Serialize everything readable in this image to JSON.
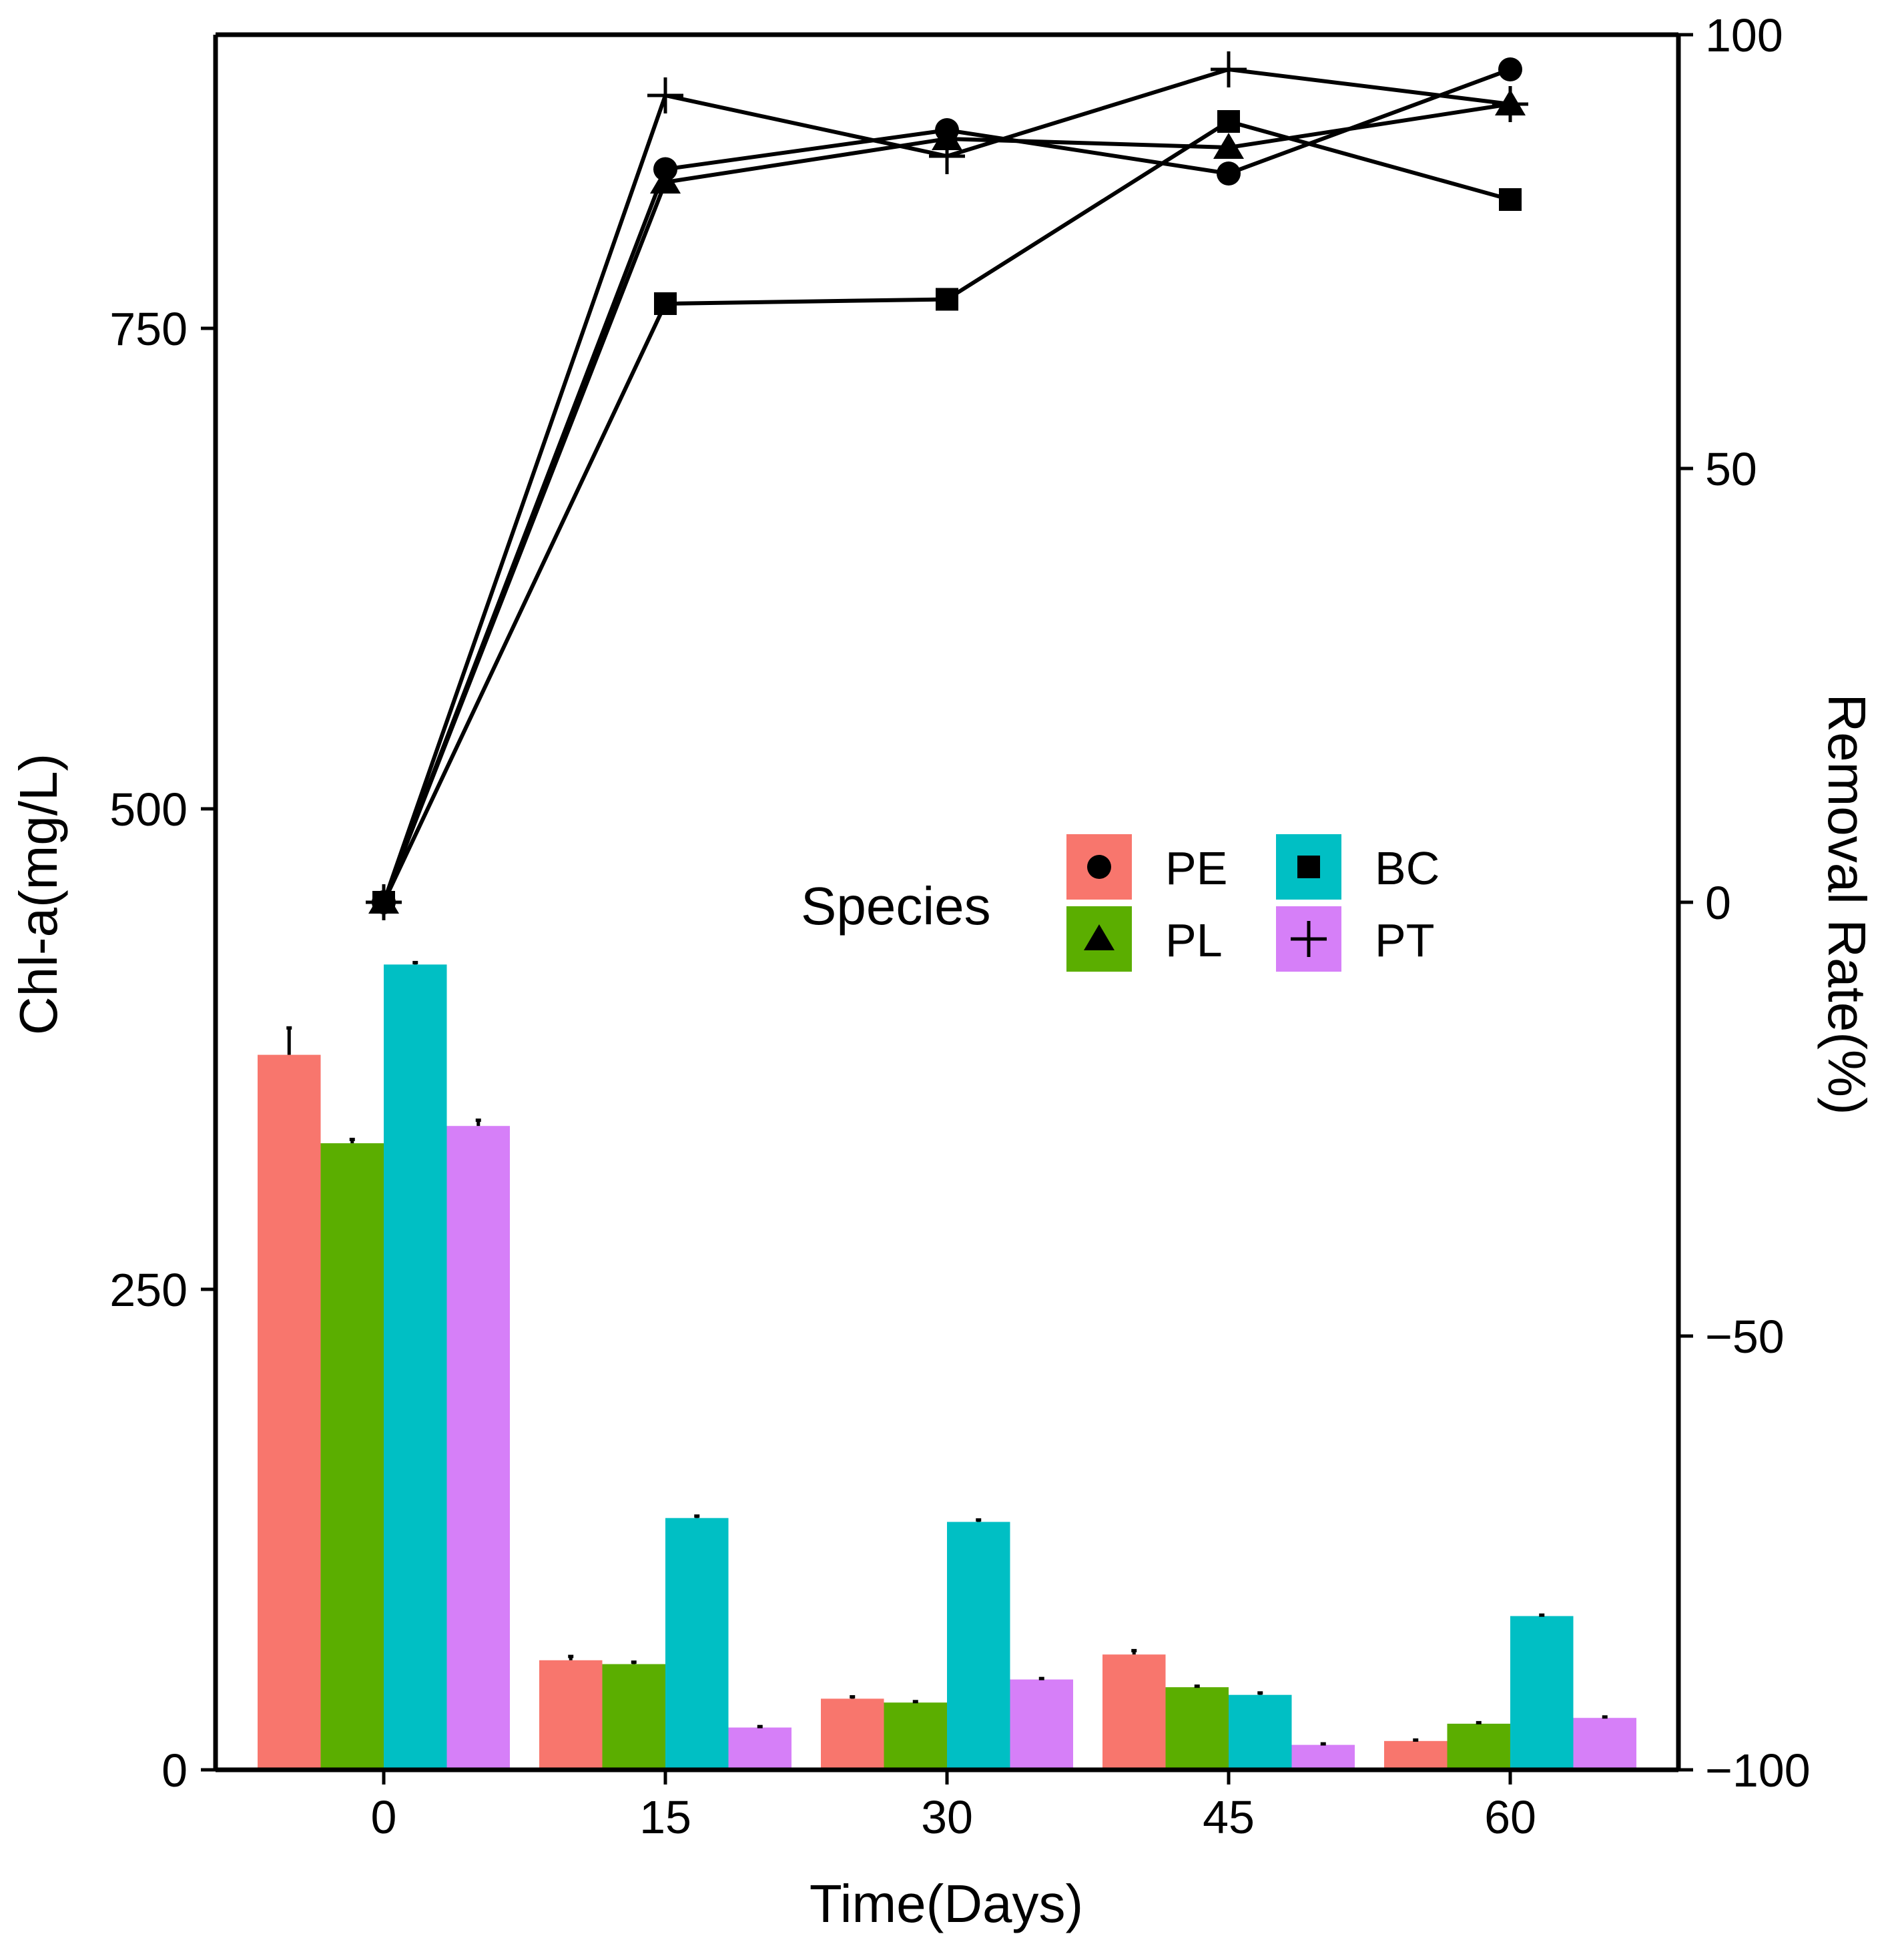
{
  "chart_data": {
    "type": "bar",
    "secondary_type": "line",
    "categories": [
      "0",
      "15",
      "30",
      "45",
      "60"
    ],
    "xlabel": "Time(Days)",
    "ylabel": "Chl-a(mg/L)",
    "y2label": "Removal Rate(%)",
    "ylim": [
      0,
      900
    ],
    "y2lim": [
      -100,
      100
    ],
    "yticks": [
      "0",
      "250",
      "500",
      "750"
    ],
    "y2ticks": [
      "−100",
      "−50",
      "0",
      "50",
      "100"
    ],
    "grid": false,
    "legend": {
      "title": "Species",
      "position": "center-right",
      "entries": [
        {
          "key": "PE",
          "label": "PE",
          "color": "#F8766D",
          "marker": "circle"
        },
        {
          "key": "PL",
          "label": "PL",
          "color": "#5BAE00",
          "marker": "triangle"
        },
        {
          "key": "BC",
          "label": "BC",
          "color": "#00BFC4",
          "marker": "square"
        },
        {
          "key": "PT",
          "label": "PT",
          "color": "#D67FF8",
          "marker": "plus"
        }
      ]
    },
    "bar_series": [
      {
        "name": "PE",
        "color": "#F8766D",
        "values": [
          372,
          57,
          37,
          60,
          15
        ],
        "errors": [
          14,
          2,
          1,
          2,
          0.5
        ]
      },
      {
        "name": "PL",
        "color": "#5BAE00",
        "values": [
          326,
          55,
          35,
          43,
          24
        ],
        "errors": [
          2,
          1,
          0.5,
          0.5,
          0.5
        ]
      },
      {
        "name": "BC",
        "color": "#00BFC4",
        "values": [
          419,
          131,
          129,
          39,
          80
        ],
        "errors": [
          1,
          1,
          1,
          1,
          0.5
        ]
      },
      {
        "name": "PT",
        "color": "#D67FF8",
        "values": [
          335,
          22,
          47,
          13,
          27
        ],
        "errors": [
          3,
          0.5,
          0.5,
          0.5,
          0.5
        ]
      }
    ],
    "line_series": [
      {
        "name": "PE",
        "marker": "circle",
        "values": [
          0,
          84.5,
          89,
          84,
          96
        ]
      },
      {
        "name": "PL",
        "marker": "triangle",
        "values": [
          0,
          83,
          88,
          87,
          92
        ]
      },
      {
        "name": "BC",
        "marker": "square",
        "values": [
          0,
          69,
          69.5,
          90,
          81
        ]
      },
      {
        "name": "PT",
        "marker": "plus",
        "values": [
          0,
          93,
          86,
          96,
          92
        ]
      }
    ]
  }
}
